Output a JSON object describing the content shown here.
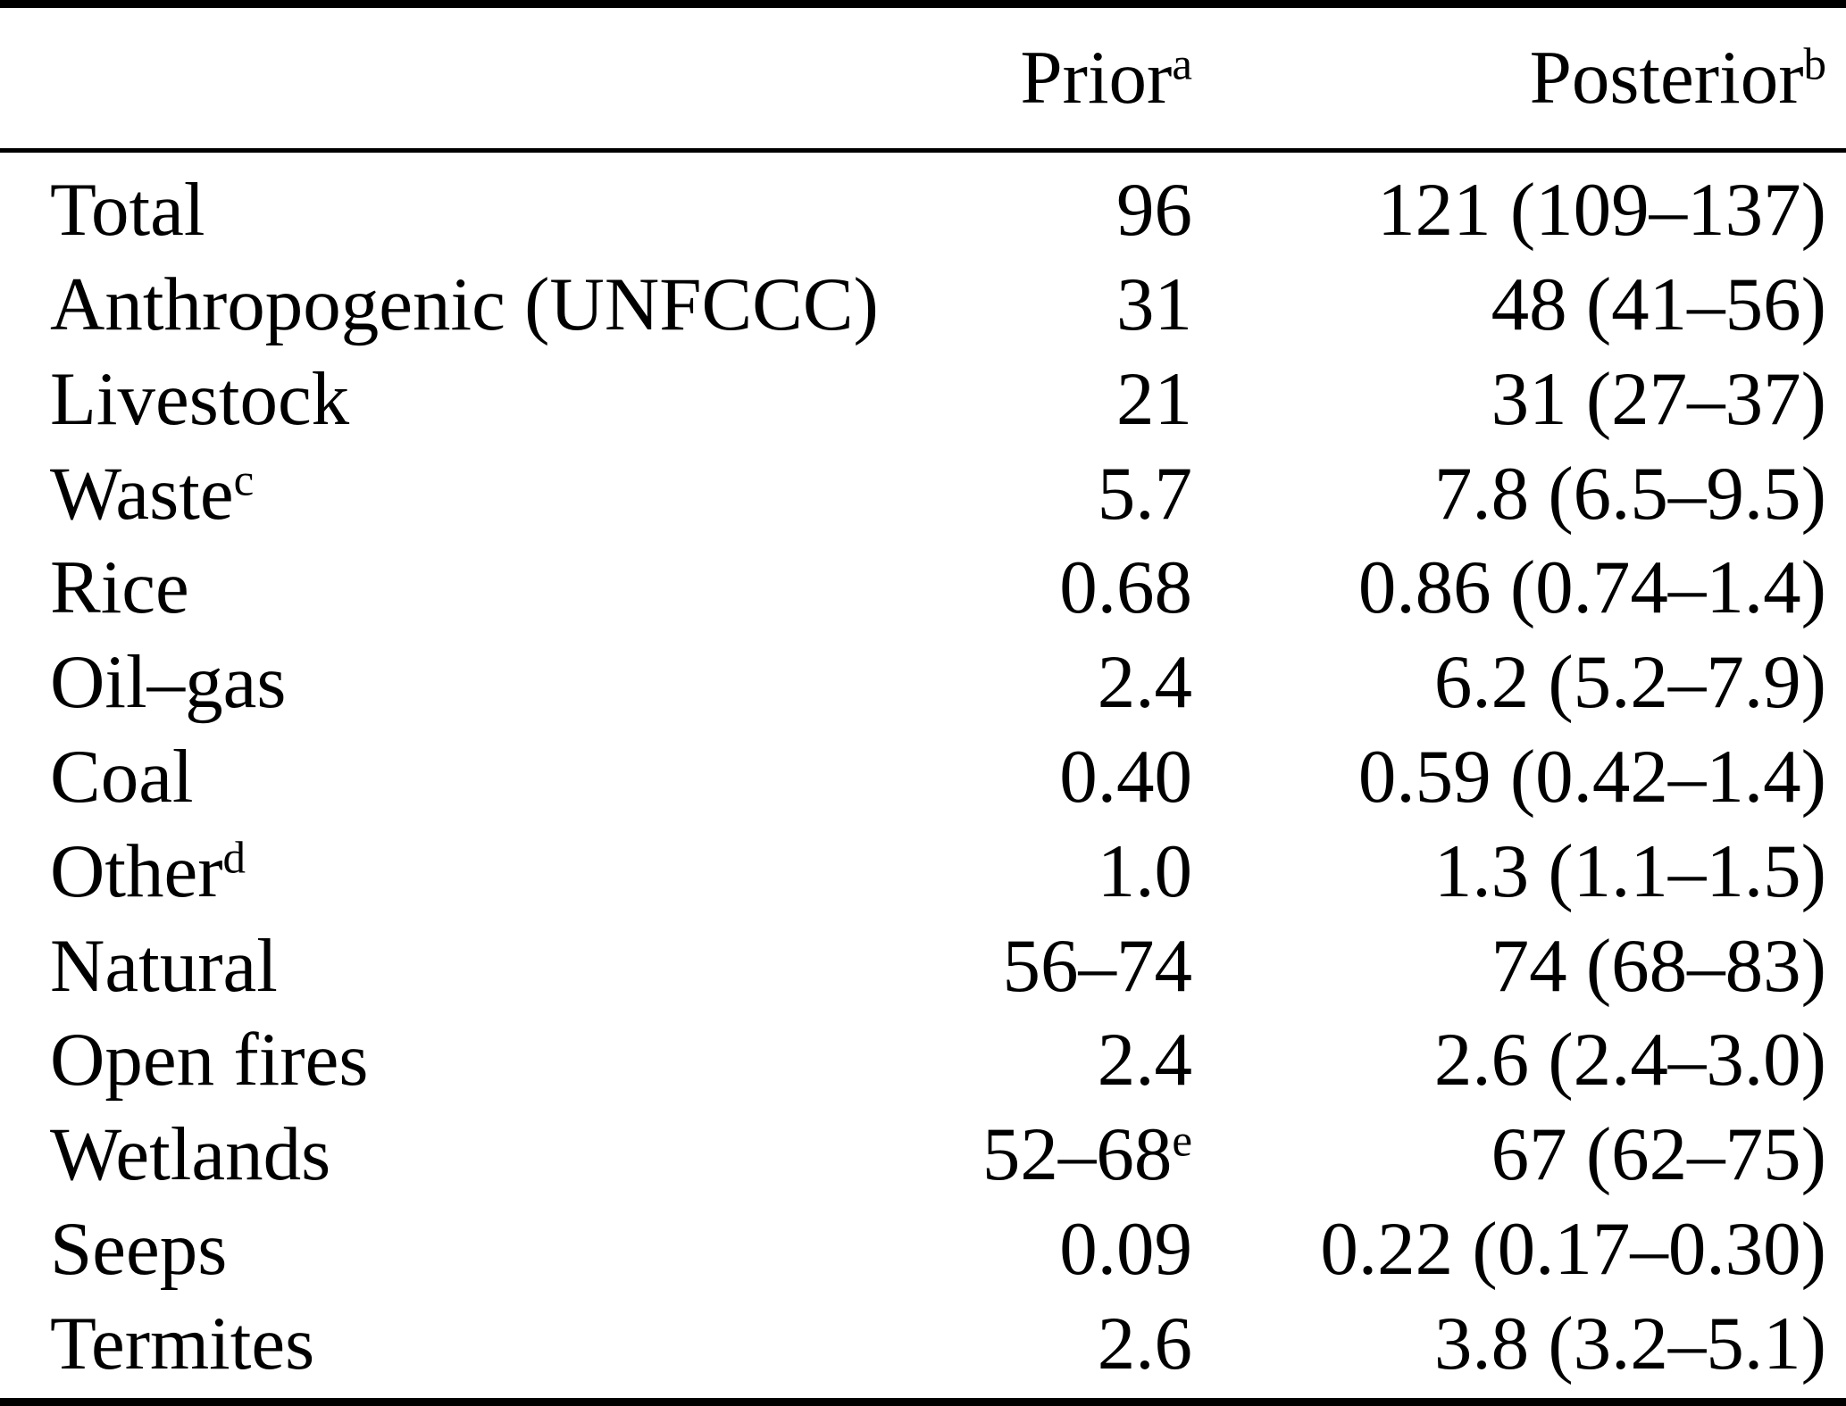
{
  "table": {
    "style": {
      "text_color": "#000000",
      "background_color": "#ffffff",
      "rule_color": "#000000"
    },
    "header": {
      "prior": {
        "label": "Prior",
        "superscript": "a"
      },
      "posterior": {
        "label": "Posterior",
        "superscript": "b"
      }
    },
    "rows": [
      {
        "label": "Total",
        "prior": "96",
        "posterior": "121 (109–137)"
      },
      {
        "label": "Anthropogenic (UNFCCC)",
        "prior": "31",
        "posterior": "48 (41–56)"
      },
      {
        "label": "Livestock",
        "prior": "21",
        "posterior": "31 (27–37)"
      },
      {
        "label": "Waste",
        "label_superscript": "c",
        "prior": "5.7",
        "posterior": "7.8 (6.5–9.5)"
      },
      {
        "label": "Rice",
        "prior": "0.68",
        "posterior": "0.86 (0.74–1.4)"
      },
      {
        "label": "Oil–gas",
        "prior": "2.4",
        "posterior": "6.2 (5.2–7.9)"
      },
      {
        "label": "Coal",
        "prior": "0.40",
        "posterior": "0.59 (0.42–1.4)"
      },
      {
        "label": "Other",
        "label_superscript": "d",
        "prior": "1.0",
        "posterior": "1.3 (1.1–1.5)"
      },
      {
        "label": "Natural",
        "prior": "56–74",
        "posterior": "74 (68–83)"
      },
      {
        "label": "Open fires",
        "prior": "2.4",
        "posterior": "2.6 (2.4–3.0)"
      },
      {
        "label": "Wetlands",
        "prior": "52–68",
        "prior_superscript": "e",
        "posterior": "67 (62–75)"
      },
      {
        "label": "Seeps",
        "prior": "0.09",
        "posterior": "0.22 (0.17–0.30)"
      },
      {
        "label": "Termites",
        "prior": "2.6",
        "posterior": "3.8 (3.2–5.1)"
      }
    ]
  }
}
